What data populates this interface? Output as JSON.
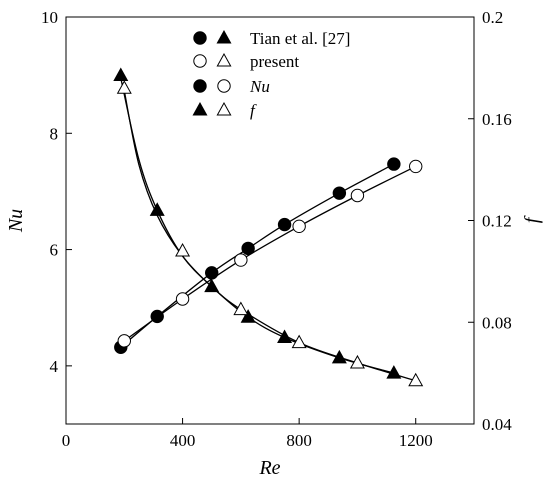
{
  "chart_data": {
    "type": "scatter",
    "xlabel": "Re",
    "ylabel_left": "Nu",
    "ylabel_right": "f",
    "xlim": [
      0,
      1400
    ],
    "ylim_left": [
      3,
      10
    ],
    "ylim_right": [
      0.04,
      0.2
    ],
    "x_ticks": [
      0,
      400,
      800,
      1200
    ],
    "y_left_ticks": [
      4,
      6,
      8,
      10
    ],
    "y_right_ticks": [
      0.04,
      0.08,
      0.12,
      0.16,
      0.2
    ],
    "grid": false,
    "legend": {
      "placement": "top-center",
      "rows": [
        {
          "label": "Tian et al. [27]",
          "italic": false,
          "markers": [
            "filled-circle",
            "filled-triangle"
          ]
        },
        {
          "label": "present",
          "italic": false,
          "markers": [
            "open-circle",
            "open-triangle"
          ]
        },
        {
          "label": "Nu",
          "italic": true,
          "markers": [
            "filled-circle",
            "open-circle"
          ]
        },
        {
          "label": "f",
          "italic": true,
          "markers": [
            "filled-triangle",
            "open-triangle"
          ]
        }
      ]
    },
    "series": [
      {
        "axis": "left",
        "marker": "filled-circle",
        "x": [
          188,
          313,
          500,
          625,
          750,
          938,
          1125
        ],
        "y": [
          4.32,
          4.85,
          5.6,
          6.02,
          6.43,
          6.97,
          7.47
        ]
      },
      {
        "axis": "left",
        "marker": "open-circle",
        "x": [
          200,
          400,
          600,
          800,
          1000,
          1200
        ],
        "y": [
          4.43,
          5.15,
          5.82,
          6.4,
          6.93,
          7.43
        ]
      },
      {
        "axis": "right",
        "marker": "filled-triangle",
        "x": [
          188,
          313,
          500,
          625,
          750,
          938,
          1125
        ],
        "y": [
          0.177,
          0.124,
          0.094,
          0.082,
          0.074,
          0.066,
          0.06
        ]
      },
      {
        "axis": "right",
        "marker": "open-triangle",
        "x": [
          200,
          400,
          600,
          800,
          1000,
          1200
        ],
        "y": [
          0.172,
          0.108,
          0.085,
          0.072,
          0.064,
          0.057
        ]
      }
    ],
    "fit_lines": [
      {
        "axis": "left",
        "x": [
          188,
          313,
          500,
          625,
          750,
          938,
          1125
        ],
        "y": [
          4.32,
          4.85,
          5.6,
          6.02,
          6.43,
          6.97,
          7.47
        ]
      },
      {
        "axis": "left",
        "x": [
          200,
          400,
          600,
          800,
          1000,
          1200
        ],
        "y": [
          4.43,
          5.15,
          5.82,
          6.4,
          6.93,
          7.43
        ]
      },
      {
        "axis": "right",
        "x": [
          188,
          250,
          313,
          400,
          500,
          625,
          750,
          938,
          1125
        ],
        "y": [
          0.176,
          0.144,
          0.124,
          0.106,
          0.094,
          0.082,
          0.074,
          0.066,
          0.06
        ]
      },
      {
        "axis": "right",
        "x": [
          200,
          250,
          313,
          400,
          500,
          600,
          800,
          1000,
          1200
        ],
        "y": [
          0.171,
          0.142,
          0.122,
          0.106,
          0.094,
          0.085,
          0.072,
          0.064,
          0.057
        ]
      }
    ]
  }
}
